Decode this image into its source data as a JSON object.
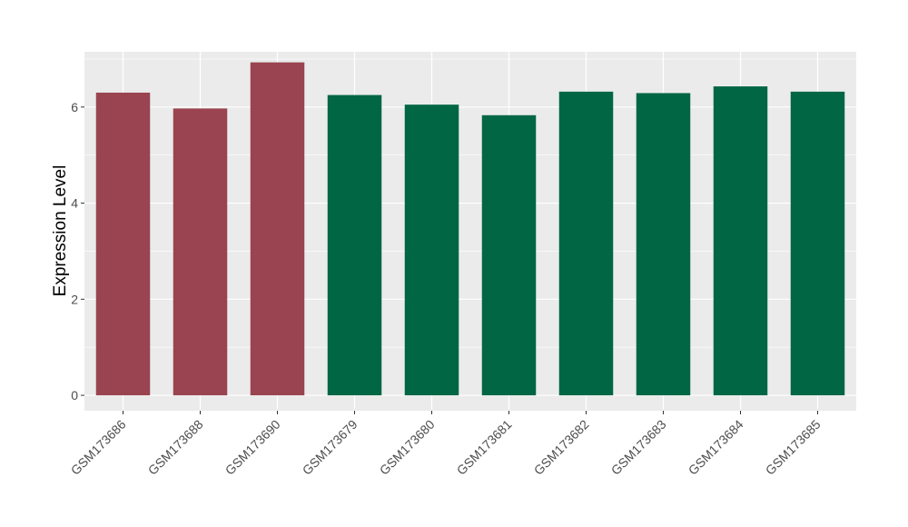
{
  "chart_data": {
    "type": "bar",
    "title": "",
    "xlabel": "",
    "ylabel": "Expression Level",
    "ylim": [
      -0.32,
      7.15
    ],
    "yticks": [
      0,
      2,
      4,
      6
    ],
    "grid": true,
    "legend": "none",
    "categories": [
      "GSM173686",
      "GSM173688",
      "GSM173690",
      "GSM173679",
      "GSM173680",
      "GSM173681",
      "GSM173682",
      "GSM173683",
      "GSM173684",
      "GSM173685"
    ],
    "values": [
      6.3,
      5.97,
      6.93,
      6.25,
      6.05,
      5.83,
      6.32,
      6.29,
      6.43,
      6.32
    ],
    "bar_colors": [
      "#994450",
      "#994450",
      "#994450",
      "#006644",
      "#006644",
      "#006644",
      "#006644",
      "#006644",
      "#006644",
      "#006644"
    ],
    "panel_color": "#ebebeb",
    "grid_color": "#ffffff"
  }
}
